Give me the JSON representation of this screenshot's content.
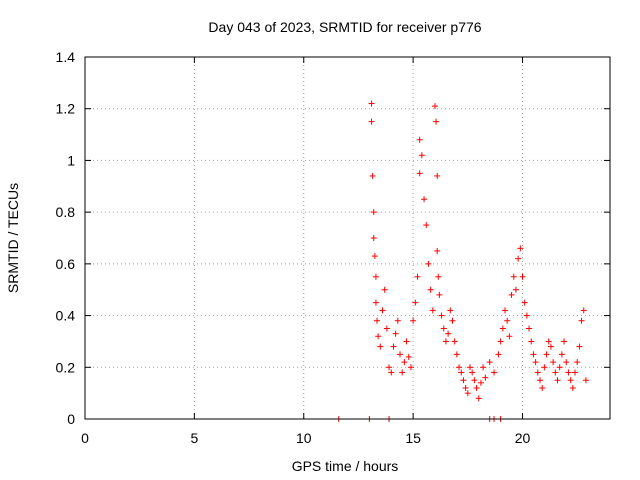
{
  "chart_data": {
    "type": "scatter",
    "title": "Day 043 of 2023, SRMTID for receiver p776",
    "xlabel": "GPS time / hours",
    "ylabel": "SRMTID / TECUs",
    "xlim": [
      0,
      24
    ],
    "ylim": [
      0,
      1.4
    ],
    "xticks": [
      0,
      5,
      10,
      15,
      20
    ],
    "xtick_labels": [
      "0",
      "5",
      "10",
      "15",
      "20"
    ],
    "yticks": [
      0,
      0.2,
      0.4,
      0.6,
      0.8,
      1,
      1.2,
      1.4
    ],
    "ytick_labels": [
      "0",
      "0.2",
      "0.4",
      "0.6",
      "0.8",
      "1",
      "1.2",
      "1.4"
    ],
    "grid": true,
    "marker": "+",
    "series": [
      {
        "name": "SRMTID",
        "color": "#ff0000",
        "x": [
          11.6,
          13.0,
          13.9,
          18.5,
          18.7,
          19.0,
          13.1,
          13.1,
          13.15,
          13.2,
          13.2,
          13.25,
          13.3,
          13.3,
          13.35,
          13.4,
          13.5,
          13.6,
          13.7,
          13.8,
          13.9,
          14.0,
          14.1,
          14.2,
          14.3,
          14.4,
          14.5,
          14.6,
          14.7,
          14.8,
          14.9,
          15.0,
          15.1,
          15.2,
          15.3,
          15.3,
          15.4,
          15.5,
          15.6,
          15.7,
          15.8,
          15.9,
          16.0,
          16.05,
          16.1,
          16.1,
          16.15,
          16.2,
          16.3,
          16.4,
          16.5,
          16.6,
          16.7,
          16.8,
          16.9,
          17.0,
          17.1,
          17.2,
          17.3,
          17.4,
          17.5,
          17.6,
          17.7,
          17.8,
          17.9,
          18.0,
          18.1,
          18.2,
          18.3,
          18.5,
          18.7,
          18.9,
          19.0,
          19.1,
          19.2,
          19.3,
          19.4,
          19.5,
          19.6,
          19.7,
          19.8,
          19.9,
          20.0,
          20.1,
          20.2,
          20.3,
          20.4,
          20.5,
          20.6,
          20.7,
          20.8,
          20.9,
          21.0,
          21.1,
          21.2,
          21.3,
          21.4,
          21.5,
          21.6,
          21.7,
          21.8,
          21.9,
          22.0,
          22.1,
          22.2,
          22.3,
          22.4,
          22.5,
          22.6,
          22.7,
          22.8,
          22.9
        ],
        "y": [
          0,
          0,
          0,
          0,
          0,
          0,
          1.22,
          1.15,
          0.94,
          0.8,
          0.7,
          0.63,
          0.55,
          0.45,
          0.38,
          0.32,
          0.28,
          0.42,
          0.5,
          0.35,
          0.2,
          0.18,
          0.28,
          0.33,
          0.38,
          0.25,
          0.18,
          0.22,
          0.3,
          0.24,
          0.2,
          0.38,
          0.45,
          0.55,
          0.95,
          1.08,
          1.02,
          0.85,
          0.75,
          0.6,
          0.5,
          0.42,
          1.21,
          1.15,
          0.94,
          0.65,
          0.55,
          0.48,
          0.4,
          0.35,
          0.3,
          0.33,
          0.42,
          0.38,
          0.3,
          0.25,
          0.2,
          0.18,
          0.15,
          0.12,
          0.1,
          0.2,
          0.18,
          0.15,
          0.12,
          0.08,
          0.14,
          0.2,
          0.16,
          0.22,
          0.18,
          0.25,
          0.3,
          0.35,
          0.42,
          0.38,
          0.32,
          0.48,
          0.55,
          0.5,
          0.62,
          0.66,
          0.55,
          0.45,
          0.4,
          0.35,
          0.3,
          0.25,
          0.22,
          0.18,
          0.15,
          0.12,
          0.2,
          0.25,
          0.3,
          0.28,
          0.22,
          0.18,
          0.15,
          0.2,
          0.25,
          0.3,
          0.22,
          0.18,
          0.15,
          0.12,
          0.18,
          0.22,
          0.28,
          0.38,
          0.42,
          0.15
        ]
      }
    ]
  }
}
